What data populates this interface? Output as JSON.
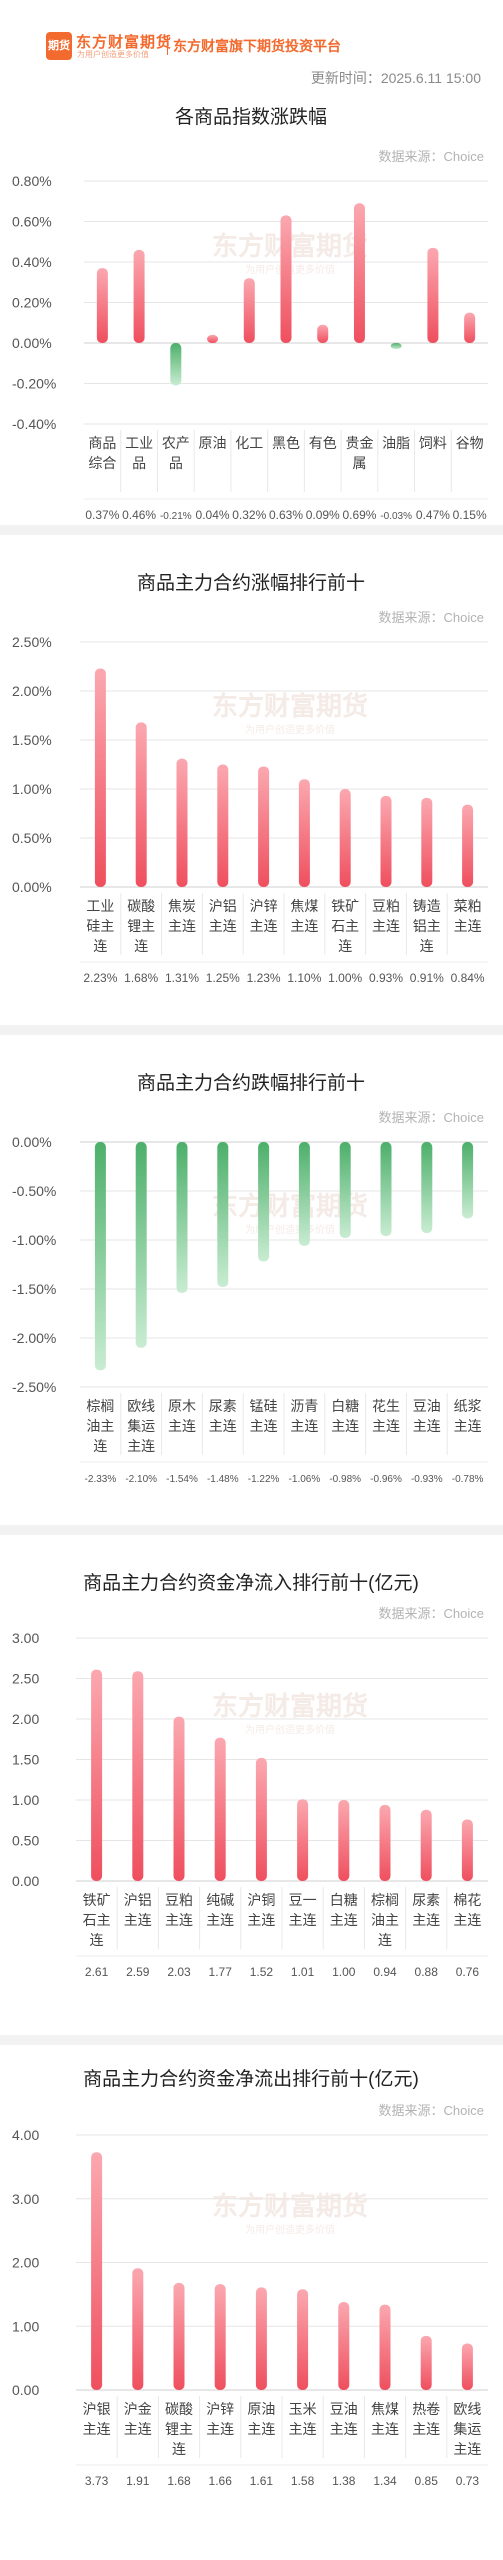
{
  "header": {
    "logo_badge": "期货",
    "logo_name": "东方财富期货",
    "logo_slogan": "为用户创造更多价值",
    "platform": "东方财富旗下期货投资平台",
    "update_time": "更新时间：2025.6.11 15:00"
  },
  "watermark": {
    "main": "东方财富期货",
    "sub": "为用户创造更多价值"
  },
  "colors": {
    "up": "#ef4f5e",
    "down": "#4caf6a",
    "grid": "#e6e6e6",
    "axis": "#333333"
  },
  "chart_data": [
    {
      "type": "bar",
      "title": "各商品指数涨跌幅",
      "source": "数据来源：Choice",
      "y_format": "percent2",
      "ylim": [
        -0.4,
        0.8
      ],
      "yticks": [
        0.8,
        0.6,
        0.4,
        0.2,
        0.0,
        -0.2,
        -0.4
      ],
      "categories": [
        [
          "商品",
          "综合"
        ],
        [
          "工业",
          "品"
        ],
        [
          "农产",
          "品"
        ],
        [
          "原油"
        ],
        [
          "化工"
        ],
        [
          "黑色"
        ],
        [
          "有色"
        ],
        [
          "贵金",
          "属"
        ],
        [
          "油脂"
        ],
        [
          "饲料"
        ],
        [
          "谷物"
        ]
      ],
      "values": [
        0.37,
        0.46,
        -0.21,
        0.04,
        0.32,
        0.63,
        0.09,
        0.69,
        -0.03,
        0.47,
        0.15
      ],
      "value_labels": [
        "0.37%",
        "0.46%",
        "-0.21%",
        "0.04%",
        "0.32%",
        "0.63%",
        "0.09%",
        "0.69%",
        "-0.03%",
        "0.47%",
        "0.15%"
      ]
    },
    {
      "type": "bar",
      "title": "商品主力合约涨幅排行前十",
      "source": "数据来源：Choice",
      "y_format": "percent2",
      "ylim": [
        0,
        2.5
      ],
      "yticks": [
        2.5,
        2.0,
        1.5,
        1.0,
        0.5,
        0.0
      ],
      "categories": [
        [
          "工业",
          "硅主",
          "连"
        ],
        [
          "碳酸",
          "锂主",
          "连"
        ],
        [
          "焦炭",
          "主连"
        ],
        [
          "沪铝",
          "主连"
        ],
        [
          "沪锌",
          "主连"
        ],
        [
          "焦煤",
          "主连"
        ],
        [
          "铁矿",
          "石主",
          "连"
        ],
        [
          "豆粕",
          "主连"
        ],
        [
          "铸造",
          "铝主",
          "连"
        ],
        [
          "菜粕",
          "主连"
        ]
      ],
      "values": [
        2.23,
        1.68,
        1.31,
        1.25,
        1.23,
        1.1,
        1.0,
        0.93,
        0.91,
        0.84
      ],
      "value_labels": [
        "2.23%",
        "1.68%",
        "1.31%",
        "1.25%",
        "1.23%",
        "1.10%",
        "1.00%",
        "0.93%",
        "0.91%",
        "0.84%"
      ]
    },
    {
      "type": "bar",
      "title": "商品主力合约跌幅排行前十",
      "source": "数据来源：Choice",
      "y_format": "percent2",
      "ylim": [
        -2.5,
        0
      ],
      "yticks": [
        0.0,
        -0.5,
        -1.0,
        -1.5,
        -2.0,
        -2.5
      ],
      "categories": [
        [
          "棕榈",
          "油主",
          "连"
        ],
        [
          "欧线",
          "集运",
          "主连"
        ],
        [
          "原木",
          "主连"
        ],
        [
          "尿素",
          "主连"
        ],
        [
          "锰硅",
          "主连"
        ],
        [
          "沥青",
          "主连"
        ],
        [
          "白糖",
          "主连"
        ],
        [
          "花生",
          "主连"
        ],
        [
          "豆油",
          "主连"
        ],
        [
          "纸浆",
          "主连"
        ]
      ],
      "values": [
        -2.33,
        -2.1,
        -1.54,
        -1.48,
        -1.22,
        -1.06,
        -0.98,
        -0.96,
        -0.93,
        -0.78
      ],
      "value_labels": [
        "-2.33%",
        "-2.10%",
        "-1.54%",
        "-1.48%",
        "-1.22%",
        "-1.06%",
        "-0.98%",
        "-0.96%",
        "-0.93%",
        "-0.78%"
      ]
    },
    {
      "type": "bar",
      "title": "商品主力合约资金净流入排行前十(亿元)",
      "source": "数据来源：Choice",
      "y_format": "fixed2",
      "ylim": [
        0,
        3.0
      ],
      "yticks": [
        3.0,
        2.5,
        2.0,
        1.5,
        1.0,
        0.5,
        0.0
      ],
      "categories": [
        [
          "铁矿",
          "石主",
          "连"
        ],
        [
          "沪铝",
          "主连"
        ],
        [
          "豆粕",
          "主连"
        ],
        [
          "纯碱",
          "主连"
        ],
        [
          "沪铜",
          "主连"
        ],
        [
          "豆一",
          "主连"
        ],
        [
          "白糖",
          "主连"
        ],
        [
          "棕榈",
          "油主",
          "连"
        ],
        [
          "尿素",
          "主连"
        ],
        [
          "棉花",
          "主连"
        ]
      ],
      "values": [
        2.61,
        2.59,
        2.03,
        1.77,
        1.52,
        1.01,
        1.0,
        0.94,
        0.88,
        0.76
      ],
      "value_labels": [
        "2.61",
        "2.59",
        "2.03",
        "1.77",
        "1.52",
        "1.01",
        "1.00",
        "0.94",
        "0.88",
        "0.76"
      ]
    },
    {
      "type": "bar",
      "title": "商品主力合约资金净流出排行前十(亿元)",
      "source": "数据来源：Choice",
      "y_format": "fixed2",
      "ylim": [
        0,
        4.0
      ],
      "yticks": [
        4.0,
        3.0,
        2.0,
        1.0,
        0.0
      ],
      "categories": [
        [
          "沪银",
          "主连"
        ],
        [
          "沪金",
          "主连"
        ],
        [
          "碳酸",
          "锂主",
          "连"
        ],
        [
          "沪锌",
          "主连"
        ],
        [
          "原油",
          "主连"
        ],
        [
          "玉米",
          "主连"
        ],
        [
          "豆油",
          "主连"
        ],
        [
          "焦煤",
          "主连"
        ],
        [
          "热卷",
          "主连"
        ],
        [
          "欧线",
          "集运",
          "主连"
        ]
      ],
      "values": [
        3.73,
        1.91,
        1.68,
        1.66,
        1.61,
        1.58,
        1.38,
        1.34,
        0.85,
        0.73
      ],
      "value_labels": [
        "3.73",
        "1.91",
        "1.68",
        "1.66",
        "1.61",
        "1.58",
        "1.38",
        "1.34",
        "0.85",
        "0.73"
      ]
    }
  ]
}
